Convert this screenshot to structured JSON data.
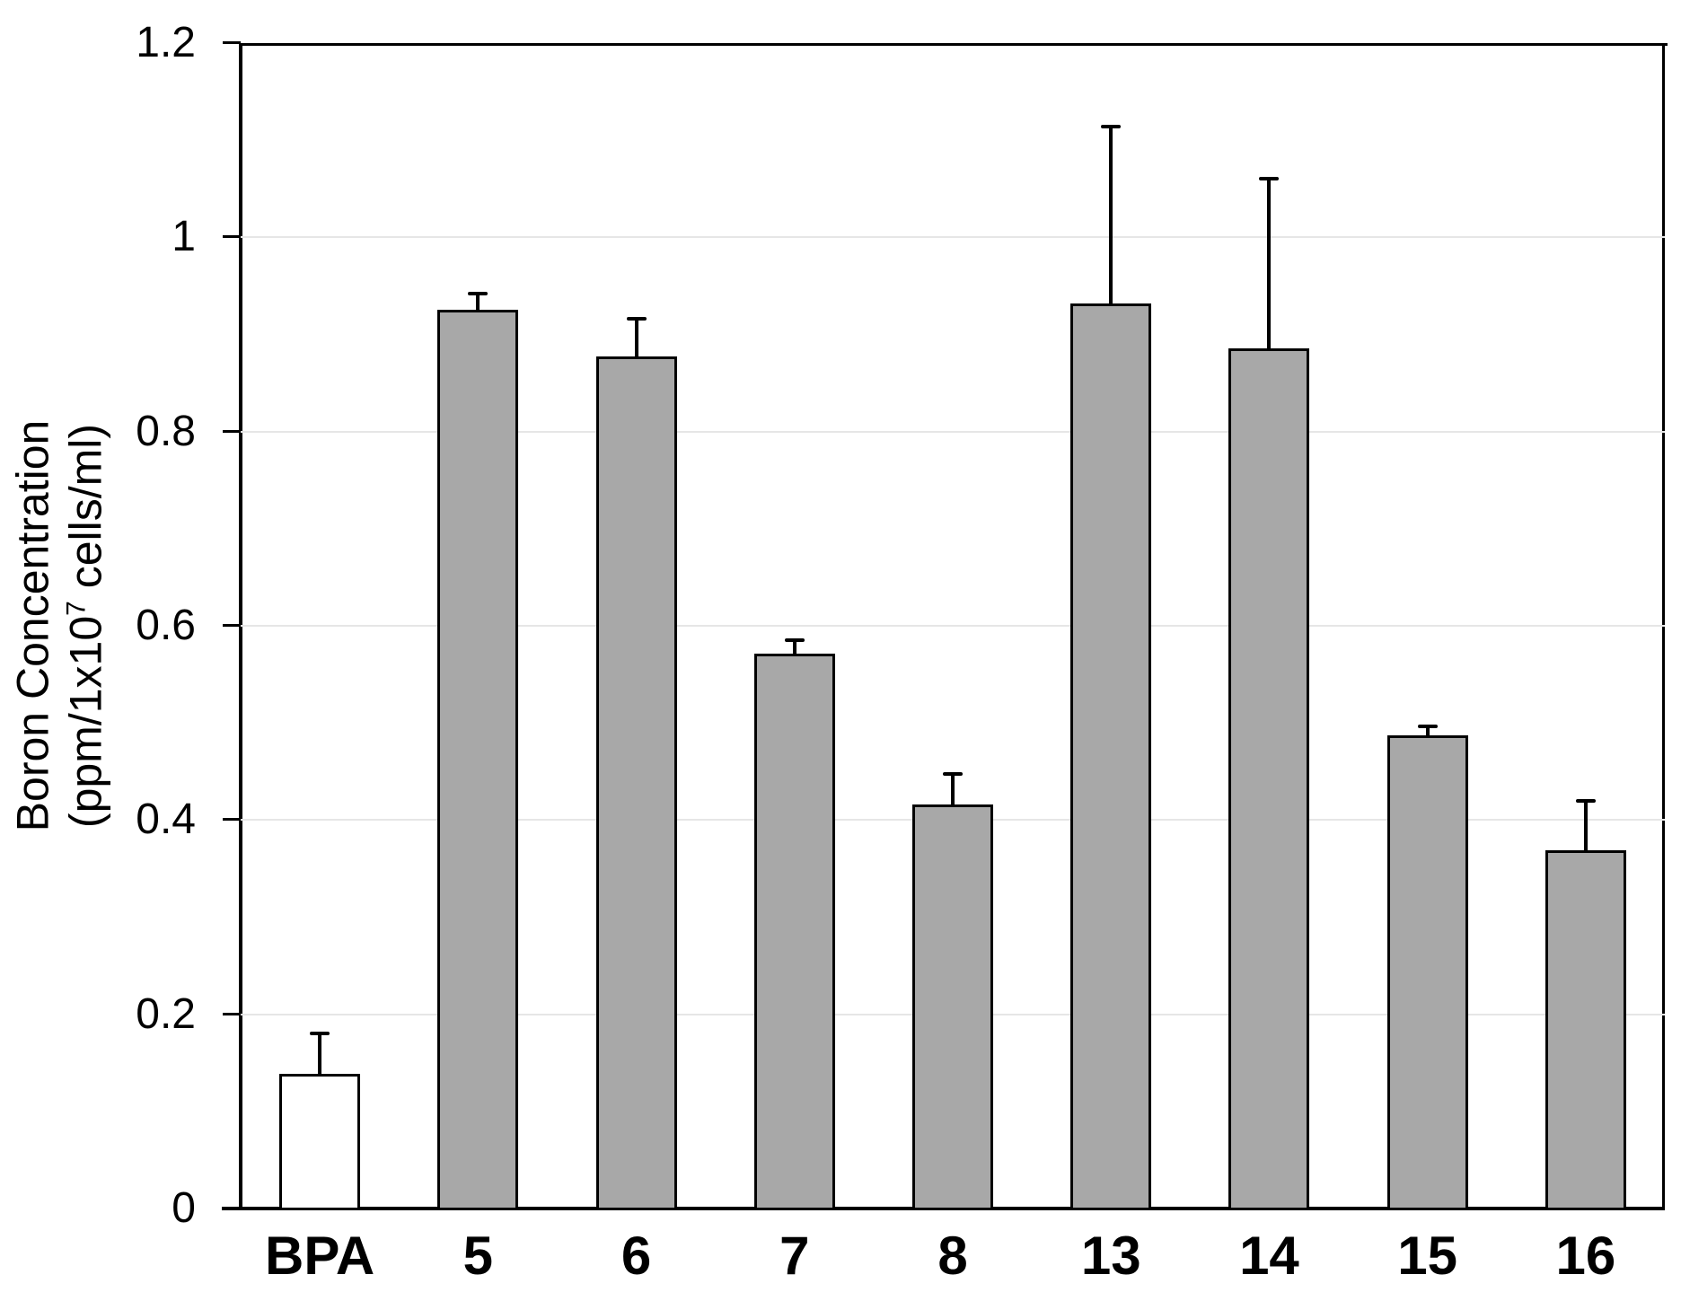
{
  "chart_data": {
    "type": "bar",
    "categories": [
      "BPA",
      "5",
      "6",
      "7",
      "8",
      "13",
      "14",
      "15",
      "16"
    ],
    "values": [
      0.139,
      0.925,
      0.877,
      0.571,
      0.416,
      0.932,
      0.886,
      0.487,
      0.369
    ],
    "errors_plus": [
      0.041,
      0.017,
      0.039,
      0.014,
      0.031,
      0.182,
      0.174,
      0.009,
      0.051
    ],
    "bar_fills": [
      "#ffffff",
      "#a8a8a8",
      "#a8a8a8",
      "#a8a8a8",
      "#a8a8a8",
      "#a8a8a8",
      "#a8a8a8",
      "#a8a8a8",
      "#a8a8a8"
    ],
    "ylabel_line1": "Boron Concentration",
    "ylabel_line2_prefix": "(ppm/1x10",
    "ylabel_line2_sup": "7",
    "ylabel_line2_suffix": " cells/ml)",
    "yticks": [
      "0",
      "0.2",
      "0.4",
      "0.6",
      "0.8",
      "1",
      "1.2"
    ],
    "ylim": [
      0,
      1.2
    ],
    "grid": true,
    "legend": "none",
    "colors": {
      "bar_gray": "#a8a8a8",
      "bar_control_white": "#ffffff",
      "bar_border": "#000000",
      "axis": "#000000",
      "grid": "#e6e6e6",
      "text": "#000000",
      "background": "#ffffff"
    }
  }
}
